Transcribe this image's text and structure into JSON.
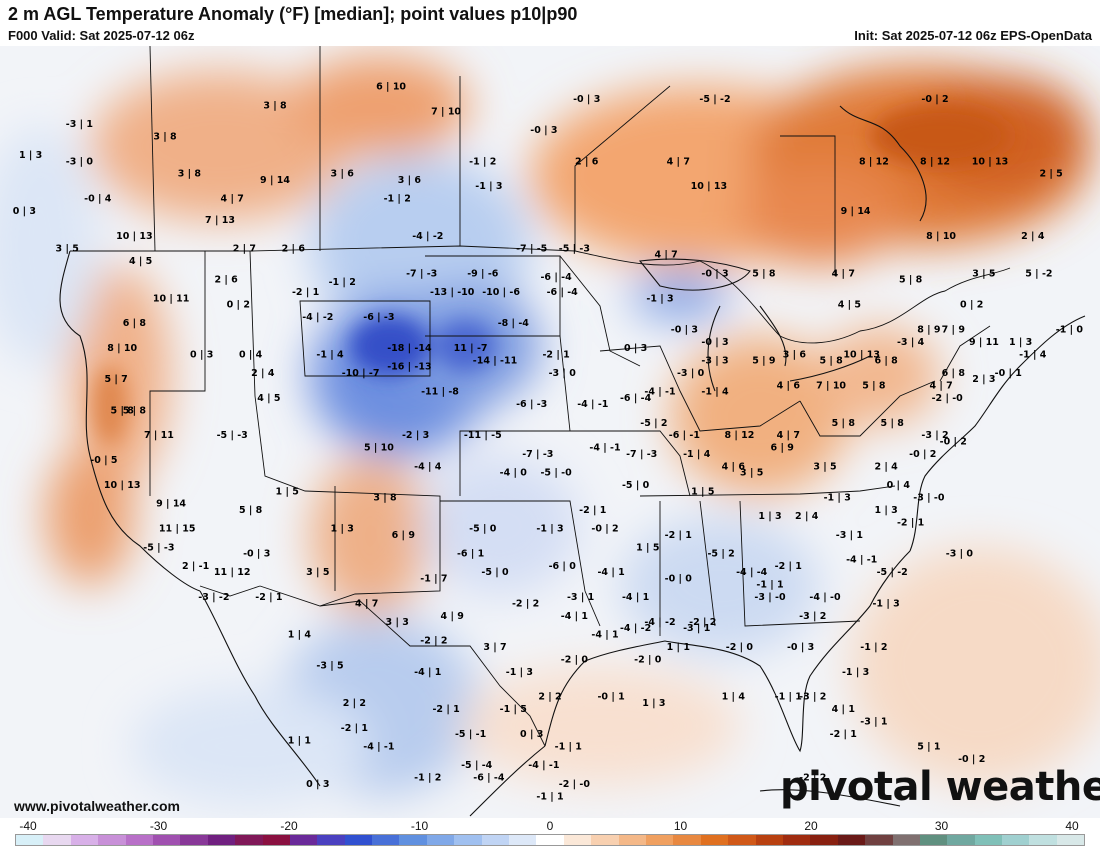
{
  "header": {
    "title": "2 m AGL Temperature Anomaly (°F) [median]; point values p10|p90",
    "valid": "F000 Valid: Sat 2025-07-12 06z",
    "init": "Init: Sat 2025-07-12 06z EPS-OpenData"
  },
  "footer": {
    "website": "www.pivotalweather.com",
    "logo": "pivotal weather"
  },
  "colorbar": {
    "ticks": [
      "-40",
      "-30",
      "-20",
      "-10",
      "0",
      "10",
      "20",
      "30",
      "40"
    ],
    "colors": [
      "#d8f0f8",
      "#e8d8f0",
      "#d8b0e8",
      "#c890d8",
      "#b870c8",
      "#a050b0",
      "#883898",
      "#702080",
      "#801858",
      "#8a1040",
      "#6a2a9a",
      "#4a40c0",
      "#3050d0",
      "#4870d8",
      "#6090e0",
      "#80a8e8",
      "#a0c0f0",
      "#c0d4f4",
      "#dde8f8",
      "#ffffff",
      "#fbe8d8",
      "#f8d0b0",
      "#f4b888",
      "#f0a060",
      "#e88840",
      "#e07020",
      "#d05818",
      "#b84010",
      "#a02c10",
      "#882010",
      "#6a1a18",
      "#704040",
      "#807070",
      "#609080",
      "#70a8a0",
      "#80c0b8",
      "#a0d0d0",
      "#c0e0e0",
      "#d8e8e8"
    ]
  },
  "legend_note": "point values p10|p90",
  "points": [
    {
      "label": "-3 | 1",
      "lon": -131.5,
      "lat": 55.5
    },
    {
      "label": "1 | 3",
      "lon": -135.5,
      "lat": 53.0
    },
    {
      "label": "-3 | 0",
      "lon": -131.5,
      "lat": 52.5
    },
    {
      "label": "3 | 8",
      "lon": -124.5,
      "lat": 54.5
    },
    {
      "label": "3 | 8",
      "lon": -115.5,
      "lat": 57.0
    },
    {
      "label": "6 | 10",
      "lon": -106.0,
      "lat": 58.5
    },
    {
      "label": "7 | 10",
      "lon": -101.5,
      "lat": 56.5
    },
    {
      "label": "-0 | 3",
      "lon": -93.5,
      "lat": 55.0
    },
    {
      "label": "-0 | 3",
      "lon": -90.0,
      "lat": 57.5
    },
    {
      "label": "-5 | -2",
      "lon": -79.5,
      "lat": 57.5
    },
    {
      "label": "-0 | 2",
      "lon": -61.5,
      "lat": 57.5
    },
    {
      "label": "3 | 8",
      "lon": -122.5,
      "lat": 51.5
    },
    {
      "label": "9 | 14",
      "lon": -115.5,
      "lat": 51.0
    },
    {
      "label": "3 | 6",
      "lon": -110.0,
      "lat": 51.5
    },
    {
      "label": "3 | 6",
      "lon": -104.5,
      "lat": 51.0
    },
    {
      "label": "-1 | 2",
      "lon": -98.5,
      "lat": 52.5
    },
    {
      "label": "2 | 6",
      "lon": -90.0,
      "lat": 52.5
    },
    {
      "label": "4 | 7",
      "lon": -82.5,
      "lat": 52.5
    },
    {
      "label": "8 | 12",
      "lon": -66.5,
      "lat": 52.5
    },
    {
      "label": "8 | 12",
      "lon": -61.5,
      "lat": 52.5
    },
    {
      "label": "10 | 13",
      "lon": -57.0,
      "lat": 52.5
    },
    {
      "label": "2 | 5",
      "lon": -52.0,
      "lat": 51.5
    },
    {
      "label": "-0 | 4",
      "lon": -130.0,
      "lat": 49.5
    },
    {
      "label": "4 | 7",
      "lon": -119.0,
      "lat": 49.5
    },
    {
      "label": "-1 | 2",
      "lon": -105.5,
      "lat": 49.5
    },
    {
      "label": "-1 | 3",
      "lon": -98.0,
      "lat": 50.5
    },
    {
      "label": "10 | 13",
      "lon": -80.0,
      "lat": 50.5
    },
    {
      "label": "0 | 3",
      "lon": -136.0,
      "lat": 48.5
    },
    {
      "label": "7 | 13",
      "lon": -120.0,
      "lat": 47.8
    },
    {
      "label": "10 | 13",
      "lon": -127.0,
      "lat": 46.5
    },
    {
      "label": "-4 | -2",
      "lon": -103.0,
      "lat": 46.5
    },
    {
      "label": "9 | 14",
      "lon": -68.0,
      "lat": 48.5
    },
    {
      "label": "3 | 5",
      "lon": -132.5,
      "lat": 45.5
    },
    {
      "label": "2 | 7",
      "lon": -118.0,
      "lat": 45.5
    },
    {
      "label": "2 | 6",
      "lon": -114.0,
      "lat": 45.5
    },
    {
      "label": "-7 | -5",
      "lon": -94.5,
      "lat": 45.5
    },
    {
      "label": "-5 | -3",
      "lon": -91.0,
      "lat": 45.5
    },
    {
      "label": "4 | 7",
      "lon": -83.5,
      "lat": 45.0
    },
    {
      "label": "8 | 10",
      "lon": -61.0,
      "lat": 46.5
    },
    {
      "label": "2 | 4",
      "lon": -53.5,
      "lat": 46.5
    },
    {
      "label": "4 | 5",
      "lon": -126.5,
      "lat": 44.5
    },
    {
      "label": "2 | 6",
      "lon": -119.5,
      "lat": 43.0
    },
    {
      "label": "-1 | 2",
      "lon": -110.0,
      "lat": 42.8
    },
    {
      "label": "-7 | -3",
      "lon": -103.5,
      "lat": 43.5
    },
    {
      "label": "-9 | -6",
      "lon": -98.5,
      "lat": 43.5
    },
    {
      "label": "-6 | -4",
      "lon": -92.5,
      "lat": 43.2
    },
    {
      "label": "-0 | 3",
      "lon": -79.5,
      "lat": 43.5
    },
    {
      "label": "5 | 8",
      "lon": -75.5,
      "lat": 43.5
    },
    {
      "label": "4 | 7",
      "lon": -69.0,
      "lat": 43.5
    },
    {
      "label": "5 | 8",
      "lon": -63.5,
      "lat": 43.0
    },
    {
      "label": "3 | 5",
      "lon": -57.5,
      "lat": 43.5
    },
    {
      "label": "5 | -2",
      "lon": -53.0,
      "lat": 43.5
    },
    {
      "label": "10 | 11",
      "lon": -124.0,
      "lat": 41.5
    },
    {
      "label": "0 | 2",
      "lon": -118.5,
      "lat": 41.0
    },
    {
      "label": "-2 | 1",
      "lon": -113.0,
      "lat": 42.0
    },
    {
      "label": "-13 | -10",
      "lon": -101.0,
      "lat": 42.0
    },
    {
      "label": "-10 | -6",
      "lon": -97.0,
      "lat": 42.0
    },
    {
      "label": "-6 | -4",
      "lon": -92.0,
      "lat": 42.0
    },
    {
      "label": "-1 | 3",
      "lon": -84.0,
      "lat": 41.5
    },
    {
      "label": "4 | 5",
      "lon": -68.5,
      "lat": 41.0
    },
    {
      "label": "0 | 2",
      "lon": -58.5,
      "lat": 41.0
    },
    {
      "label": "6 | 8",
      "lon": -127.0,
      "lat": 39.5
    },
    {
      "label": "-4 | -2",
      "lon": -112.0,
      "lat": 40.0
    },
    {
      "label": "-6 | -3",
      "lon": -107.0,
      "lat": 40.0
    },
    {
      "label": "-8 | -4",
      "lon": -96.0,
      "lat": 39.5
    },
    {
      "label": "-0 | 3",
      "lon": -82.0,
      "lat": 39.0
    },
    {
      "label": "8 | 9",
      "lon": -62.0,
      "lat": 39.0
    },
    {
      "label": "7 | 9",
      "lon": -60.0,
      "lat": 39.0
    },
    {
      "label": "1 | 3",
      "lon": -54.5,
      "lat": 38.0
    },
    {
      "label": "-1 | 0",
      "lon": -50.5,
      "lat": 39.0
    },
    {
      "label": "8 | 10",
      "lon": -128.0,
      "lat": 37.5
    },
    {
      "label": "0 | 3",
      "lon": -121.5,
      "lat": 37.0
    },
    {
      "label": "0 | 4",
      "lon": -117.5,
      "lat": 37.0
    },
    {
      "label": "-1 | 4",
      "lon": -111.0,
      "lat": 37.0
    },
    {
      "label": "-18 | -14",
      "lon": -104.5,
      "lat": 37.5
    },
    {
      "label": "11 | -7",
      "lon": -99.5,
      "lat": 37.5
    },
    {
      "label": "-2 | 1",
      "lon": -92.5,
      "lat": 37.0
    },
    {
      "label": "0 | 3",
      "lon": -86.0,
      "lat": 37.5
    },
    {
      "label": "-0 | 3",
      "lon": -79.5,
      "lat": 38.0
    },
    {
      "label": "3 | 6",
      "lon": -73.0,
      "lat": 37.0
    },
    {
      "label": "10 | 13",
      "lon": -67.5,
      "lat": 37.0
    },
    {
      "label": "-3 | 4",
      "lon": -63.5,
      "lat": 38.0
    },
    {
      "label": "9 | 11",
      "lon": -57.5,
      "lat": 38.0
    },
    {
      "label": "-1 | 4",
      "lon": -53.5,
      "lat": 37.0
    },
    {
      "label": "5 | 7",
      "lon": -128.5,
      "lat": 35.0
    },
    {
      "label": "2 | 4",
      "lon": -116.5,
      "lat": 35.5
    },
    {
      "label": "-10 | -7",
      "lon": -108.5,
      "lat": 35.5
    },
    {
      "label": "-16 | -13",
      "lon": -104.5,
      "lat": 36.0
    },
    {
      "label": "-14 | -11",
      "lon": -97.5,
      "lat": 36.5
    },
    {
      "label": "-3 | 0",
      "lon": -92.0,
      "lat": 35.5
    },
    {
      "label": "-3 | 0",
      "lon": -81.5,
      "lat": 35.5
    },
    {
      "label": "-3 | 3",
      "lon": -79.5,
      "lat": 36.5
    },
    {
      "label": "5 | 9",
      "lon": -75.5,
      "lat": 36.5
    },
    {
      "label": "5 | 8",
      "lon": -70.0,
      "lat": 36.5
    },
    {
      "label": "6 | 8",
      "lon": -65.5,
      "lat": 36.5
    },
    {
      "label": "6 | 8",
      "lon": -60.0,
      "lat": 35.5
    },
    {
      "label": "-0 | 1",
      "lon": -55.5,
      "lat": 35.5
    },
    {
      "label": "4 | 5",
      "lon": -116.0,
      "lat": 33.5
    },
    {
      "label": "-11 | -8",
      "lon": -102.0,
      "lat": 34.0
    },
    {
      "label": "-6 | -3",
      "lon": -94.5,
      "lat": 33.0
    },
    {
      "label": "-4 | -1",
      "lon": -89.5,
      "lat": 33.0
    },
    {
      "label": "-6 | -4",
      "lon": -86.0,
      "lat": 33.5
    },
    {
      "label": "-4 | -1",
      "lon": -84.0,
      "lat": 34.0
    },
    {
      "label": "-1 | 4",
      "lon": -79.5,
      "lat": 34.0
    },
    {
      "label": "4 | 6",
      "lon": -73.5,
      "lat": 34.5
    },
    {
      "label": "7 | 10",
      "lon": -70.0,
      "lat": 34.5
    },
    {
      "label": "5 | 8",
      "lon": -66.5,
      "lat": 34.5
    },
    {
      "label": "4 | 7",
      "lon": -61.0,
      "lat": 34.5
    },
    {
      "label": "2 | 3",
      "lon": -57.5,
      "lat": 35.0
    },
    {
      "label": "5 | 8",
      "lon": -128.0,
      "lat": 32.5
    },
    {
      "label": "5 | 8",
      "lon": -127.0,
      "lat": 32.5
    },
    {
      "label": "-2 | -0",
      "lon": -60.5,
      "lat": 33.5
    },
    {
      "label": "7 | 11",
      "lon": -125.0,
      "lat": 30.5
    },
    {
      "label": "-5 | -3",
      "lon": -119.0,
      "lat": 30.5
    },
    {
      "label": "-2 | 3",
      "lon": -104.0,
      "lat": 30.5
    },
    {
      "label": "-11 | -5",
      "lon": -98.5,
      "lat": 30.5
    },
    {
      "label": "-5 | 2",
      "lon": -84.5,
      "lat": 31.5
    },
    {
      "label": "-6 | -1",
      "lon": -82.0,
      "lat": 30.5
    },
    {
      "label": "8 | 12",
      "lon": -77.5,
      "lat": 30.5
    },
    {
      "label": "4 | 7",
      "lon": -73.5,
      "lat": 30.5
    },
    {
      "label": "5 | 8",
      "lon": -69.0,
      "lat": 31.5
    },
    {
      "label": "5 | 8",
      "lon": -65.0,
      "lat": 31.5
    },
    {
      "label": "-3 | 2",
      "lon": -61.5,
      "lat": 30.5
    },
    {
      "label": "-0 | 2",
      "lon": -60.0,
      "lat": 30.0
    },
    {
      "label": "-7 | -3",
      "lon": -94.0,
      "lat": 29.0
    },
    {
      "label": "-4 | -1",
      "lon": -88.5,
      "lat": 29.5
    },
    {
      "label": "-7 | -3",
      "lon": -85.5,
      "lat": 29.0
    },
    {
      "label": "-1 | 4",
      "lon": -81.0,
      "lat": 29.0
    },
    {
      "label": "-0 | 5",
      "lon": -129.5,
      "lat": 28.5
    },
    {
      "label": "5 | 10",
      "lon": -107.0,
      "lat": 29.5
    },
    {
      "label": "-4 | 4",
      "lon": -103.0,
      "lat": 28.0
    },
    {
      "label": "6 | 9",
      "lon": -74.0,
      "lat": 29.5
    },
    {
      "label": "3 | 5",
      "lon": -70.5,
      "lat": 28.0
    },
    {
      "label": "3 | 5",
      "lon": -76.5,
      "lat": 27.5
    },
    {
      "label": "2 | 4",
      "lon": -65.5,
      "lat": 28.0
    },
    {
      "label": "4 | 6",
      "lon": -78.0,
      "lat": 28.0
    },
    {
      "label": "-0 | 2",
      "lon": -62.5,
      "lat": 29.0
    },
    {
      "label": "10 | 13",
      "lon": -128.0,
      "lat": 26.5
    },
    {
      "label": "-4 | 0",
      "lon": -96.0,
      "lat": 27.5
    },
    {
      "label": "-5 | -0",
      "lon": -92.5,
      "lat": 27.5
    },
    {
      "label": "-5 | 0",
      "lon": -86.0,
      "lat": 26.5
    },
    {
      "label": "1 | 5",
      "lon": -80.5,
      "lat": 26.0
    },
    {
      "label": "0 | 4",
      "lon": -64.5,
      "lat": 26.5
    },
    {
      "label": "-3 | -0",
      "lon": -62.0,
      "lat": 25.5
    },
    {
      "label": "9 | 14",
      "lon": -124.0,
      "lat": 25.0
    },
    {
      "label": "1 | 5",
      "lon": -114.5,
      "lat": 26.0
    },
    {
      "label": "3 | 8",
      "lon": -106.5,
      "lat": 25.5
    },
    {
      "label": "-1 | 3",
      "lon": -69.5,
      "lat": 25.5
    },
    {
      "label": "1 | 3",
      "lon": -65.5,
      "lat": 24.5
    },
    {
      "label": "5 | 8",
      "lon": -117.5,
      "lat": 24.5
    },
    {
      "label": "-2 | 1",
      "lon": -89.5,
      "lat": 24.5
    },
    {
      "label": "1 | 3",
      "lon": -75.0,
      "lat": 24.0
    },
    {
      "label": "2 | 4",
      "lon": -72.0,
      "lat": 24.0
    },
    {
      "label": "-2 | 1",
      "lon": -63.5,
      "lat": 23.5
    },
    {
      "label": "11 | 15",
      "lon": -123.5,
      "lat": 23.0
    },
    {
      "label": "1 | 3",
      "lon": -110.0,
      "lat": 23.0
    },
    {
      "label": "-5 | 0",
      "lon": -98.5,
      "lat": 23.0
    },
    {
      "label": "-1 | 3",
      "lon": -93.0,
      "lat": 23.0
    },
    {
      "label": "-0 | 2",
      "lon": -88.5,
      "lat": 23.0
    },
    {
      "label": "-2 | 1",
      "lon": -82.5,
      "lat": 22.5
    },
    {
      "label": "-3 | 1",
      "lon": -68.5,
      "lat": 22.5
    },
    {
      "label": "-5 | -3",
      "lon": -125.0,
      "lat": 21.5
    },
    {
      "label": "-0 | 3",
      "lon": -117.0,
      "lat": 21.0
    },
    {
      "label": "6 | 9",
      "lon": -105.0,
      "lat": 22.5
    },
    {
      "label": "1 | 5",
      "lon": -85.0,
      "lat": 21.5
    },
    {
      "label": "-6 | 1",
      "lon": -99.5,
      "lat": 21.0
    },
    {
      "label": "-5 | 2",
      "lon": -79.0,
      "lat": 21.0
    },
    {
      "label": "-2 | 1",
      "lon": -73.5,
      "lat": 20.0
    },
    {
      "label": "-4 | -1",
      "lon": -67.5,
      "lat": 20.5
    },
    {
      "label": "-3 | 0",
      "lon": -59.5,
      "lat": 21.0
    },
    {
      "label": "2 | -1",
      "lon": -122.0,
      "lat": 20.0
    },
    {
      "label": "11 | 12",
      "lon": -119.0,
      "lat": 19.5
    },
    {
      "label": "3 | 5",
      "lon": -112.0,
      "lat": 19.5
    },
    {
      "label": "-5 | 0",
      "lon": -97.5,
      "lat": 19.5
    },
    {
      "label": "-6 | 0",
      "lon": -92.0,
      "lat": 20.0
    },
    {
      "label": "-4 | 1",
      "lon": -88.0,
      "lat": 19.5
    },
    {
      "label": "-4 | -4",
      "lon": -76.5,
      "lat": 19.5
    },
    {
      "label": "-1 | 7",
      "lon": -102.5,
      "lat": 19.0
    },
    {
      "label": "-0 | 0",
      "lon": -82.5,
      "lat": 19.0
    },
    {
      "label": "-1 | 1",
      "lon": -75.0,
      "lat": 18.5
    },
    {
      "label": "-5 | -2",
      "lon": -65.0,
      "lat": 19.5
    },
    {
      "label": "-3 | -2",
      "lon": -120.5,
      "lat": 17.5
    },
    {
      "label": "-2 | 1",
      "lon": -116.0,
      "lat": 17.5
    },
    {
      "label": "4 | 7",
      "lon": -108.0,
      "lat": 17.0
    },
    {
      "label": "-2 | 2",
      "lon": -95.0,
      "lat": 17.0
    },
    {
      "label": "-3 | 1",
      "lon": -90.5,
      "lat": 17.5
    },
    {
      "label": "-4 | 1",
      "lon": -86.0,
      "lat": 17.5
    },
    {
      "label": "-3 | -0",
      "lon": -75.0,
      "lat": 17.5
    },
    {
      "label": "-4 | -0",
      "lon": -70.5,
      "lat": 17.5
    },
    {
      "label": "-1 | 3",
      "lon": -65.5,
      "lat": 17.0
    },
    {
      "label": "-4 | 1",
      "lon": -91.0,
      "lat": 16.0
    },
    {
      "label": "3 | 3",
      "lon": -105.5,
      "lat": 15.5
    },
    {
      "label": "4 | 9",
      "lon": -101.0,
      "lat": 16.0
    },
    {
      "label": "-4 | -2",
      "lon": -84.0,
      "lat": 15.5
    },
    {
      "label": "-2 | 2",
      "lon": -80.5,
      "lat": 15.5
    },
    {
      "label": "-3 | 1",
      "lon": -81.0,
      "lat": 15.0
    },
    {
      "label": "-3 | 2",
      "lon": -71.5,
      "lat": 16.0
    },
    {
      "label": "1 | 4",
      "lon": -113.5,
      "lat": 14.5
    },
    {
      "label": "-2 | 2",
      "lon": -102.5,
      "lat": 14.0
    },
    {
      "label": "3 | 7",
      "lon": -97.5,
      "lat": 13.5
    },
    {
      "label": "-4 | 1",
      "lon": -88.5,
      "lat": 14.5
    },
    {
      "label": "-4 | -2",
      "lon": -86.0,
      "lat": 15.0
    },
    {
      "label": "1 | 1",
      "lon": -82.5,
      "lat": 13.5
    },
    {
      "label": "-2 | 0",
      "lon": -77.5,
      "lat": 13.5
    },
    {
      "label": "-0 | 3",
      "lon": -72.5,
      "lat": 13.5
    },
    {
      "label": "-1 | 2",
      "lon": -66.5,
      "lat": 13.5
    },
    {
      "label": "-2 | 0",
      "lon": -91.0,
      "lat": 12.5
    },
    {
      "label": "-2 | 0",
      "lon": -85.0,
      "lat": 12.5
    },
    {
      "label": "-3 | 5",
      "lon": -111.0,
      "lat": 12.0
    },
    {
      "label": "-4 | 1",
      "lon": -103.0,
      "lat": 11.5
    },
    {
      "label": "-1 | 3",
      "lon": -95.5,
      "lat": 11.5
    },
    {
      "label": "-1 | 3",
      "lon": -68.0,
      "lat": 11.5
    },
    {
      "label": "2 | 2",
      "lon": -93.0,
      "lat": 9.5
    },
    {
      "label": "-0 | 1",
      "lon": -88.0,
      "lat": 9.5
    },
    {
      "label": "1 | 3",
      "lon": -84.5,
      "lat": 9.0
    },
    {
      "label": "1 | 4",
      "lon": -78.0,
      "lat": 9.5
    },
    {
      "label": "-1 | 1",
      "lon": -73.5,
      "lat": 9.5
    },
    {
      "label": "-3 | 2",
      "lon": -71.5,
      "lat": 9.5
    },
    {
      "label": "2 | 2",
      "lon": -109.0,
      "lat": 9.0
    },
    {
      "label": "-2 | 1",
      "lon": -101.5,
      "lat": 8.5
    },
    {
      "label": "-1 | 5",
      "lon": -96.0,
      "lat": 8.5
    },
    {
      "label": "4 | 1",
      "lon": -69.0,
      "lat": 8.5
    },
    {
      "label": "-3 | 1",
      "lon": -66.5,
      "lat": 7.5
    },
    {
      "label": "-2 | 1",
      "lon": -109.0,
      "lat": 7.0
    },
    {
      "label": "-5 | -1",
      "lon": -99.5,
      "lat": 6.5
    },
    {
      "label": "0 | 3",
      "lon": -94.5,
      "lat": 6.5
    },
    {
      "label": "-2 | 1",
      "lon": -69.0,
      "lat": 6.5
    },
    {
      "label": "5 | 1",
      "lon": -62.0,
      "lat": 5.5
    },
    {
      "label": "1 | 1",
      "lon": -113.5,
      "lat": 6.0
    },
    {
      "label": "-4 | -1",
      "lon": -107.0,
      "lat": 5.5
    },
    {
      "label": "-1 | 1",
      "lon": -91.5,
      "lat": 5.5
    },
    {
      "label": "-0 | 2",
      "lon": -58.5,
      "lat": 4.5
    },
    {
      "label": "-5 | -4",
      "lon": -99.0,
      "lat": 4.0
    },
    {
      "label": "-4 | -1",
      "lon": -93.5,
      "lat": 4.0
    },
    {
      "label": "-1 | 2",
      "lon": -103.0,
      "lat": 3.0
    },
    {
      "label": "-6 | -4",
      "lon": -98.0,
      "lat": 3.0
    },
    {
      "label": "0 | 3",
      "lon": -112.0,
      "lat": 2.5
    },
    {
      "label": "-2 | -0",
      "lon": -91.0,
      "lat": 2.5
    },
    {
      "label": "-2 | 2",
      "lon": -71.5,
      "lat": 3.0
    },
    {
      "label": "-1 | 1",
      "lon": -93.0,
      "lat": 1.5
    }
  ]
}
